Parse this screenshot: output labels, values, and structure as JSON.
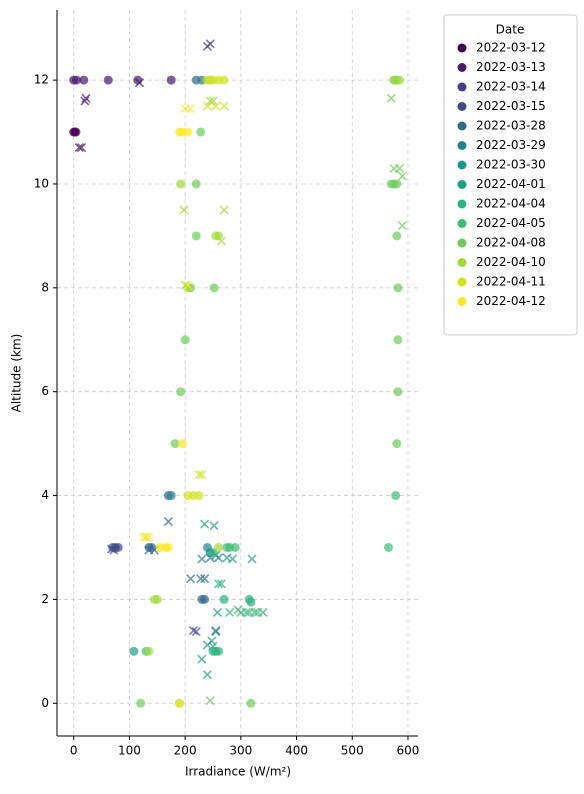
{
  "chart_data": {
    "type": "scatter",
    "xlabel": "Irradiance (W/m²)",
    "ylabel": "Altitude (km)",
    "legend_title": "Date",
    "legend": "outside-upper-right",
    "grid": true,
    "alpha": 0.7,
    "xlim": [
      -30,
      618
    ],
    "ylim": [
      -0.63,
      13.35
    ],
    "xticks": [
      0,
      100,
      200,
      300,
      400,
      500,
      600
    ],
    "yticks": [
      0,
      2,
      4,
      6,
      8,
      10,
      12
    ],
    "series": [
      {
        "name": "2022-03-12",
        "color": "#440154",
        "x": [
          0,
          2,
          4
        ],
        "values": [
          11,
          11,
          11
        ],
        "cross_x": [],
        "cross_values": []
      },
      {
        "name": "2022-03-13",
        "color": "#481a6c",
        "x": [
          0,
          5,
          18,
          62,
          115,
          175
        ],
        "values": [
          12,
          12,
          12,
          12,
          12,
          12
        ],
        "cross_x": [
          20,
          22,
          118,
          10,
          14
        ],
        "cross_values": [
          11.6,
          11.65,
          11.95,
          10.7,
          10.7
        ]
      },
      {
        "name": "2022-03-14",
        "color": "#433e85",
        "x": [],
        "values": [],
        "cross_x": [
          240,
          245
        ],
        "cross_values": [
          12.65,
          12.7
        ]
      },
      {
        "name": "2022-03-15",
        "color": "#3e4c8a",
        "x": [
          70,
          75,
          80
        ],
        "values": [
          3,
          3,
          3
        ],
        "cross_x": [
          68,
          72,
          215,
          220,
          255
        ],
        "cross_values": [
          2.97,
          2.95,
          1.4,
          1.38,
          1.38
        ]
      },
      {
        "name": "2022-03-28",
        "color": "#31688e",
        "x": [
          220,
          170,
          140,
          135,
          230,
          235
        ],
        "values": [
          12,
          4,
          3,
          3,
          2,
          2
        ],
        "cross_x": [
          170,
          210,
          228,
          235,
          135,
          145
        ],
        "cross_values": [
          3.5,
          2.4,
          2.4,
          2.4,
          2.95,
          2.95
        ]
      },
      {
        "name": "2022-03-29",
        "color": "#26828e",
        "x": [
          230,
          240,
          245,
          175
        ],
        "values": [
          12,
          3,
          2.9,
          4
        ],
        "cross_x": [
          245,
          255,
          260,
          230
        ],
        "cross_values": [
          2.8,
          2.85,
          2.8,
          2.78
        ]
      },
      {
        "name": "2022-03-30",
        "color": "#1f988b",
        "x": [],
        "values": [],
        "cross_x": [
          235,
          252,
          275,
          285,
          320,
          258,
          240,
          248
        ],
        "cross_values": [
          3.45,
          3.42,
          2.8,
          2.78,
          2.78,
          1.75,
          1.12,
          1.2
        ]
      },
      {
        "name": "2022-04-01",
        "color": "#1f9e89",
        "x": [
          108
        ],
        "values": [
          1
        ],
        "cross_x": [
          230,
          240,
          255,
          250
        ],
        "cross_values": [
          0.85,
          0.55,
          1.4,
          1.1
        ]
      },
      {
        "name": "2022-04-04",
        "color": "#2db27d",
        "x": [
          250,
          255,
          260,
          270,
          315,
          318,
          250
        ],
        "values": [
          1,
          1,
          1,
          2,
          2,
          1.95,
          2.9
        ],
        "cross_x": [
          260,
          265,
          280,
          300,
          310,
          325,
          340
        ],
        "cross_values": [
          2.3,
          2.3,
          1.75,
          1.75,
          1.75,
          1.75,
          1.75
        ]
      },
      {
        "name": "2022-04-05",
        "color": "#3fbc73",
        "x": [
          565,
          275,
          280,
          290,
          578,
          130
        ],
        "values": [
          3,
          3,
          3,
          3,
          4,
          1
        ],
        "cross_x": [
          295,
          315,
          330
        ],
        "cross_values": [
          1.8,
          1.75,
          1.75
        ]
      },
      {
        "name": "2022-04-08",
        "color": "#6ccd5a",
        "x": [
          570,
          575,
          580,
          220,
          228,
          220,
          580,
          582,
          582,
          582,
          580,
          210,
          252,
          200,
          192,
          182,
          318,
          120,
          190,
          575,
          580
        ],
        "values": [
          10,
          10,
          10,
          10,
          11,
          9,
          9,
          8,
          7,
          6,
          5,
          8,
          8,
          7,
          6,
          5,
          0,
          0,
          0,
          12,
          12
        ],
        "cross_x": [
          575,
          585,
          590,
          590,
          245,
          570
        ],
        "cross_values": [
          10.3,
          10.3,
          10.15,
          9.2,
          0.05,
          11.65
        ]
      },
      {
        "name": "2022-04-10",
        "color": "#9fda3a",
        "x": [
          192,
          255,
          260,
          205,
          260,
          150,
          145,
          135,
          575,
          585,
          245
        ],
        "values": [
          10,
          9,
          9,
          8,
          3,
          2,
          2,
          1,
          12,
          12,
          12
        ],
        "cross_x": [
          245,
          270,
          265,
          198,
          200,
          250
        ],
        "cross_values": [
          11.6,
          9.5,
          8.9,
          9.5,
          8.05,
          11.6
        ]
      },
      {
        "name": "2022-04-11",
        "color": "#d2e21b",
        "x": [
          240,
          250,
          260,
          270,
          225,
          215,
          205
        ],
        "values": [
          12,
          12,
          12,
          12,
          4,
          4,
          4
        ],
        "cross_x": [
          240,
          255,
          270,
          230,
          225,
          130
        ],
        "cross_values": [
          11.5,
          11.5,
          11.5,
          4.4,
          4.4,
          3.2
        ]
      },
      {
        "name": "2022-04-12",
        "color": "#fde725",
        "x": [
          190,
          195,
          205,
          195,
          155,
          165,
          170,
          190
        ],
        "values": [
          11,
          11,
          11,
          5,
          3,
          3,
          3,
          0
        ],
        "cross_x": [
          200,
          210,
          125,
          135,
          205
        ],
        "cross_values": [
          11.45,
          11.45,
          3.2,
          3.2,
          8.05
        ]
      }
    ]
  }
}
